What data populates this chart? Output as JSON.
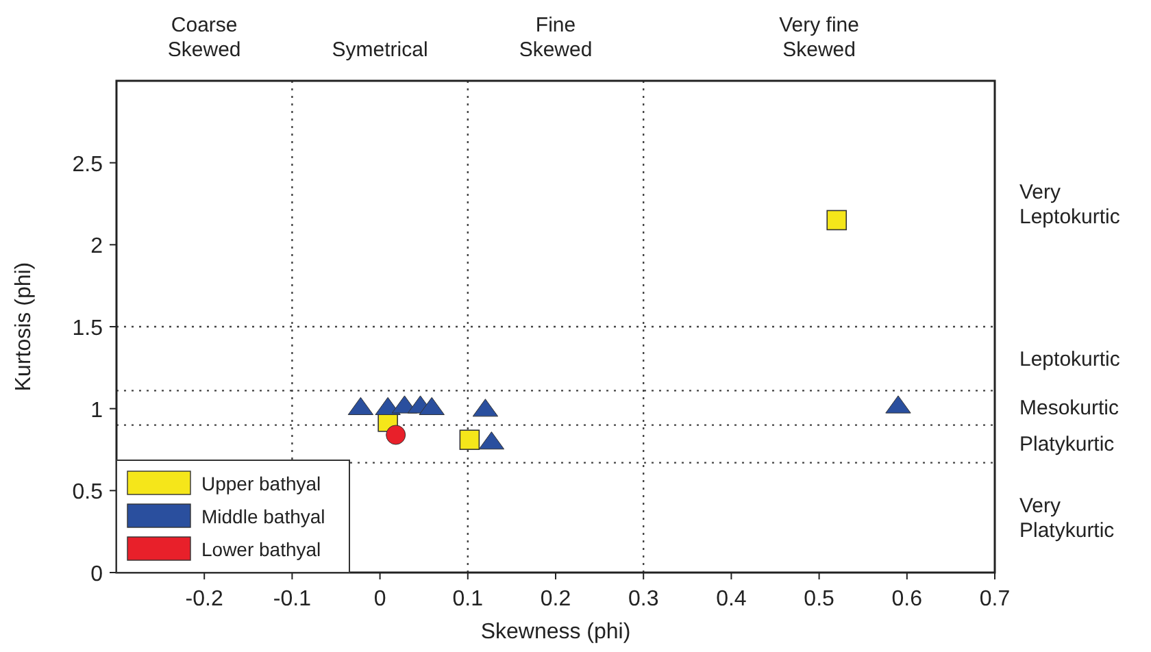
{
  "chart_data": {
    "type": "scatter",
    "xlabel": "Skewness (phi)",
    "ylabel": "Kurtosis (phi)",
    "xlim": [
      -0.3,
      0.7
    ],
    "xticks": [
      -0.2,
      -0.1,
      0,
      0.1,
      0.2,
      0.3,
      0.4,
      0.5,
      0.6,
      0.7
    ],
    "ylim": [
      0,
      3
    ],
    "yticks": [
      0,
      0.5,
      1,
      1.5,
      2,
      2.5
    ],
    "series": [
      {
        "name": "Upper bathyal",
        "color": "#f5e61a",
        "marker": "square",
        "x": [
          0.009,
          0.102,
          0.52
        ],
        "values": [
          0.92,
          0.81,
          2.15
        ]
      },
      {
        "name": "Middle bathyal",
        "color": "#2a4f9e",
        "marker": "triangle",
        "x": [
          -0.022,
          0.009,
          0.028,
          0.046,
          0.059,
          0.12,
          0.127,
          0.59
        ],
        "values": [
          1.01,
          1.01,
          1.02,
          1.02,
          1.01,
          1.0,
          0.8,
          1.02
        ]
      },
      {
        "name": "Lower bathyal",
        "color": "#e8202a",
        "marker": "circle",
        "x": [
          0.018
        ],
        "values": [
          0.84
        ]
      }
    ],
    "ref_lines": [
      {
        "axis": "x",
        "value": -0.1,
        "line_style": "dotted"
      },
      {
        "axis": "x",
        "value": 0.1,
        "line_style": "dotted"
      },
      {
        "axis": "x",
        "value": 0.3,
        "line_style": "dotted"
      },
      {
        "axis": "y",
        "value": 0.67,
        "line_style": "dotted"
      },
      {
        "axis": "y",
        "value": 0.9,
        "line_style": "dotted"
      },
      {
        "axis": "y",
        "value": 1.11,
        "line_style": "dotted"
      },
      {
        "axis": "y",
        "value": 1.5,
        "line_style": "dotted"
      }
    ],
    "annotations": [
      "Coarse\nSkewed",
      "Symetrical",
      "Fine\nSkewed",
      "Very fine\nSkewed",
      "Very\nLeptokurtic",
      "Leptokurtic",
      "Mesokurtic",
      "Platykurtic",
      "Very\nPlatykurtic"
    ],
    "legend": "bottom left",
    "grid": false
  }
}
